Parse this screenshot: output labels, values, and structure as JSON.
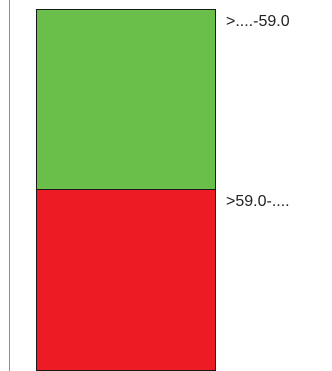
{
  "legend": {
    "items": [
      {
        "label": ">....-59.0",
        "color": "#6abf4b"
      },
      {
        "label": ">59.0-....",
        "color": "#ed1c24"
      }
    ]
  }
}
